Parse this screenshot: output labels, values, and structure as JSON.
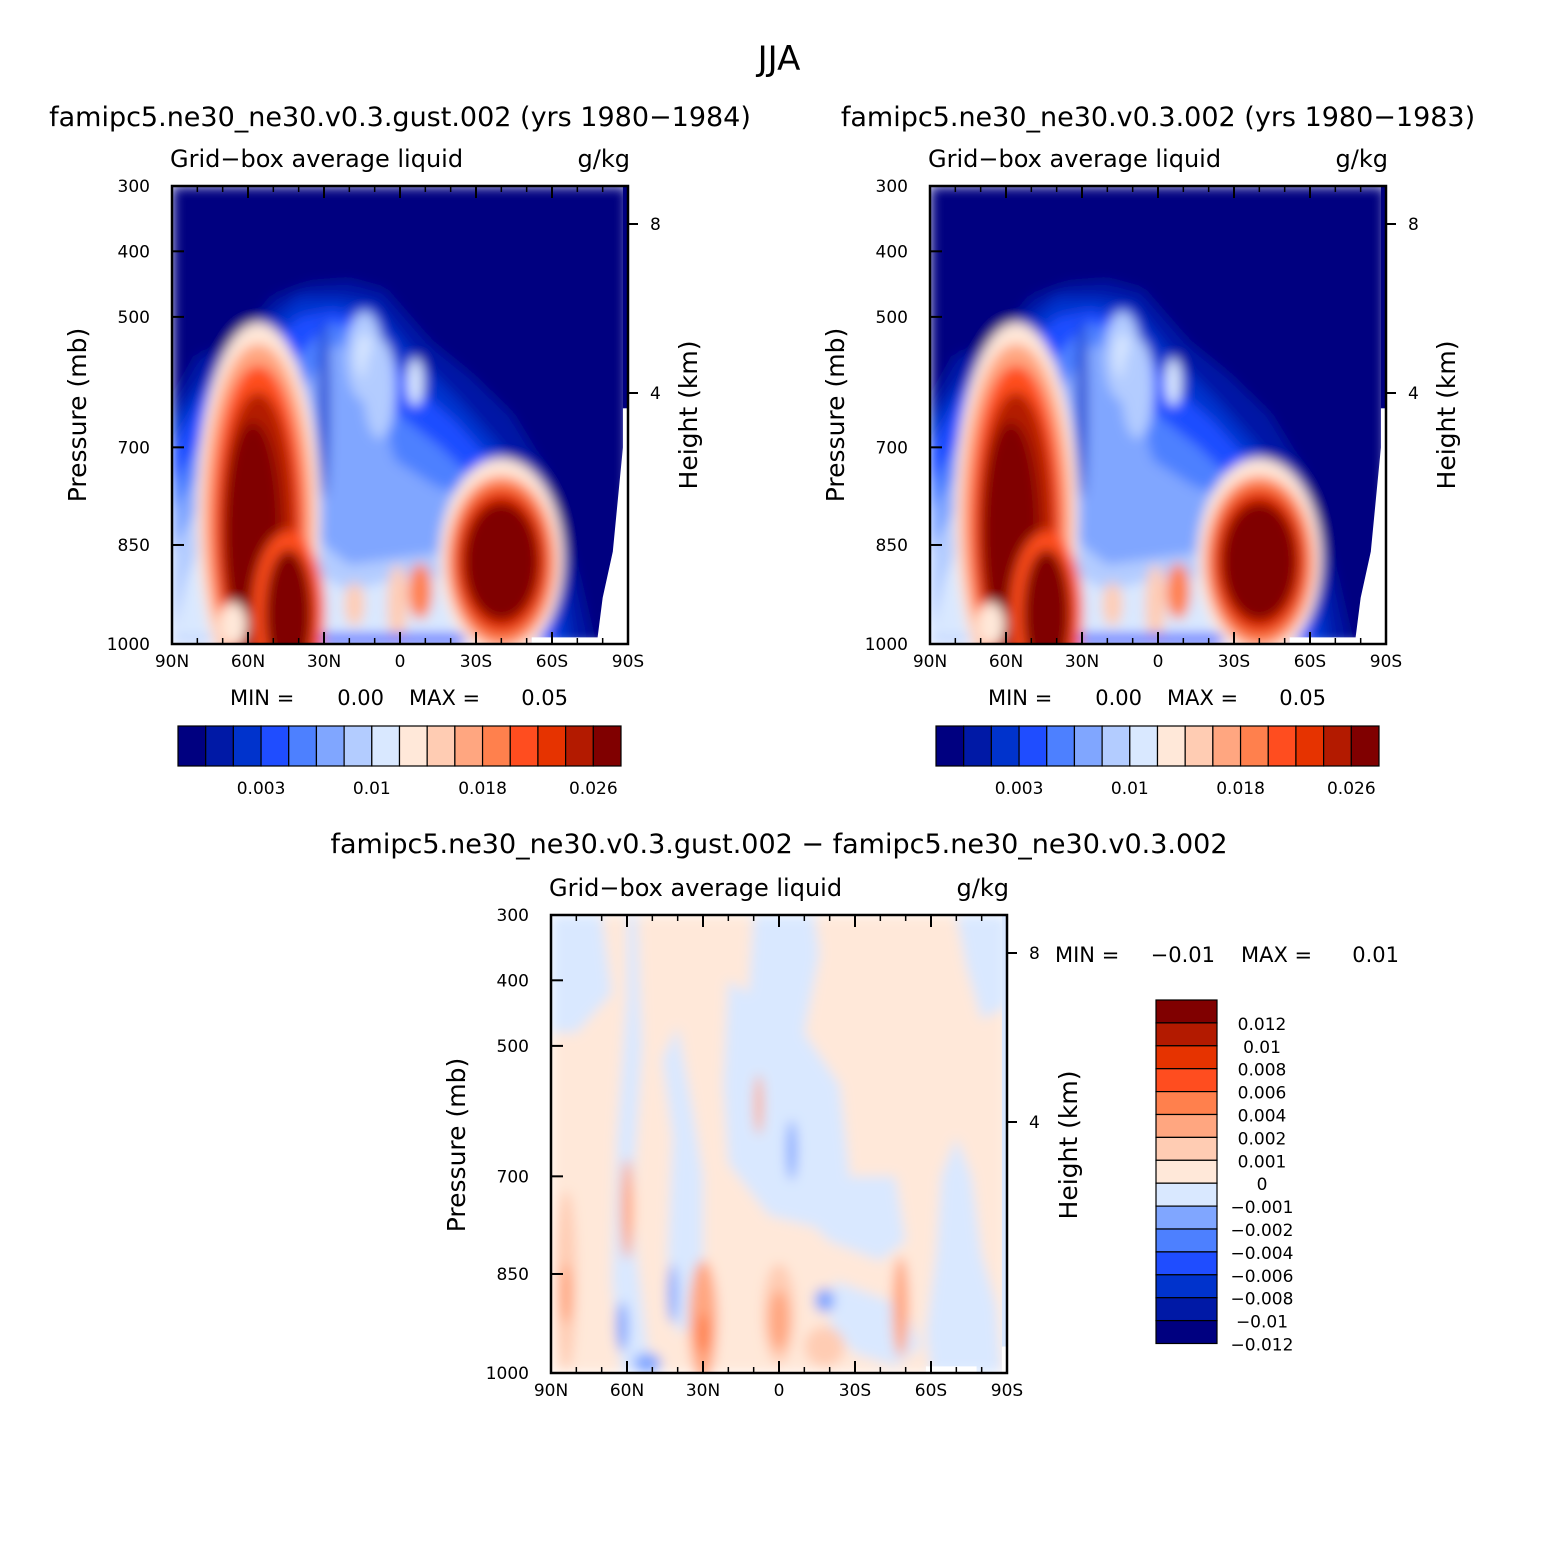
{
  "figure": {
    "title": "JJA"
  },
  "chart_data": [
    {
      "type": "heatmap",
      "title": "famipc5.ne30_ne30.v0.3.gust.002 (yrs 1980-1984)",
      "left_subtitle": "Grid-box average liquid",
      "right_subtitle": "g/kg",
      "ylabel": "Pressure (mb)",
      "y2label": "Height (km)",
      "xticklabels": [
        "90N",
        "60N",
        "30N",
        "0",
        "30S",
        "60S",
        "90S"
      ],
      "xlim": [
        90,
        -90
      ],
      "yticklabels": [
        "300",
        "400",
        "500",
        "700",
        "850",
        "1000"
      ],
      "ylim": [
        1000,
        300
      ],
      "y2ticklabels": [
        "8",
        "4"
      ],
      "min_label": "MIN =",
      "min_value": "0.00",
      "max_label": "MAX =",
      "max_value": "0.05",
      "colorbar_labels": [
        "0.003",
        "0.01",
        "0.018",
        "0.026"
      ],
      "levels": [
        0.001,
        0.002,
        0.003,
        0.004,
        0.006,
        0.008,
        0.01,
        0.012,
        0.014,
        0.016,
        0.018,
        0.02,
        0.022,
        0.024,
        0.026
      ],
      "features": [
        {
          "lat": 58,
          "p": 820,
          "value": 0.05
        },
        {
          "lat": 42,
          "p": 950,
          "value": 0.05
        },
        {
          "lat": -40,
          "p": 860,
          "value": 0.04
        }
      ]
    },
    {
      "type": "heatmap",
      "title": "famipc5.ne30_ne30.v0.3.002 (yrs 1980-1983)",
      "left_subtitle": "Grid-box average liquid",
      "right_subtitle": "g/kg",
      "ylabel": "Pressure (mb)",
      "y2label": "Height (km)",
      "xticklabels": [
        "90N",
        "60N",
        "30N",
        "0",
        "30S",
        "60S",
        "90S"
      ],
      "xlim": [
        90,
        -90
      ],
      "yticklabels": [
        "300",
        "400",
        "500",
        "700",
        "850",
        "1000"
      ],
      "ylim": [
        1000,
        300
      ],
      "y2ticklabels": [
        "8",
        "4"
      ],
      "min_label": "MIN =",
      "min_value": "0.00",
      "max_label": "MAX =",
      "max_value": "0.05",
      "colorbar_labels": [
        "0.003",
        "0.01",
        "0.018",
        "0.026"
      ],
      "levels": [
        0.001,
        0.002,
        0.003,
        0.004,
        0.006,
        0.008,
        0.01,
        0.012,
        0.014,
        0.016,
        0.018,
        0.02,
        0.022,
        0.024,
        0.026
      ],
      "features": [
        {
          "lat": 58,
          "p": 820,
          "value": 0.05
        },
        {
          "lat": 42,
          "p": 950,
          "value": 0.05
        },
        {
          "lat": -40,
          "p": 860,
          "value": 0.04
        }
      ]
    },
    {
      "type": "heatmap",
      "title": "famipc5.ne30_ne30.v0.3.gust.002 - famipc5.ne30_ne30.v0.3.002",
      "left_subtitle": "Grid-box average liquid",
      "right_subtitle": "g/kg",
      "ylabel": "Pressure (mb)",
      "y2label": "Height (km)",
      "xticklabels": [
        "90N",
        "60N",
        "30N",
        "0",
        "30S",
        "60S",
        "90S"
      ],
      "xlim": [
        90,
        -90
      ],
      "yticklabels": [
        "300",
        "400",
        "500",
        "700",
        "850",
        "1000"
      ],
      "ylim": [
        1000,
        300
      ],
      "y2ticklabels": [
        "8",
        "4"
      ],
      "min_label": "MIN =",
      "min_value": "-0.01",
      "max_label": "MAX =",
      "max_value": "0.01",
      "colorbar_labels": [
        "0.012",
        "0.01",
        "0.008",
        "0.006",
        "0.004",
        "0.002",
        "0.001",
        "0",
        "-0.001",
        "-0.002",
        "-0.004",
        "-0.006",
        "-0.008",
        "-0.01",
        "-0.012"
      ],
      "levels": [
        -0.012,
        -0.01,
        -0.008,
        -0.006,
        -0.004,
        -0.002,
        -0.001,
        0,
        0.001,
        0.002,
        0.004,
        0.006,
        0.008,
        0.01,
        0.012
      ]
    }
  ],
  "colors": {
    "sequential": [
      "#000080",
      "#0019a6",
      "#0033cc",
      "#1f4dff",
      "#4d80ff",
      "#80a6ff",
      "#b3ccff",
      "#d9e8ff",
      "#ffe8d9",
      "#ffccb3",
      "#ffa680",
      "#ff804d",
      "#ff4d1f",
      "#e63300",
      "#b31a00",
      "#800000"
    ],
    "difference": [
      "#000080",
      "#0019a6",
      "#0033cc",
      "#1f4dff",
      "#4d80ff",
      "#80a6ff",
      "#d9e8ff",
      "#ffe8d9",
      "#ffccb3",
      "#ffa680",
      "#ff804d",
      "#ff4d1f",
      "#e63300",
      "#b31a00",
      "#800000"
    ]
  }
}
